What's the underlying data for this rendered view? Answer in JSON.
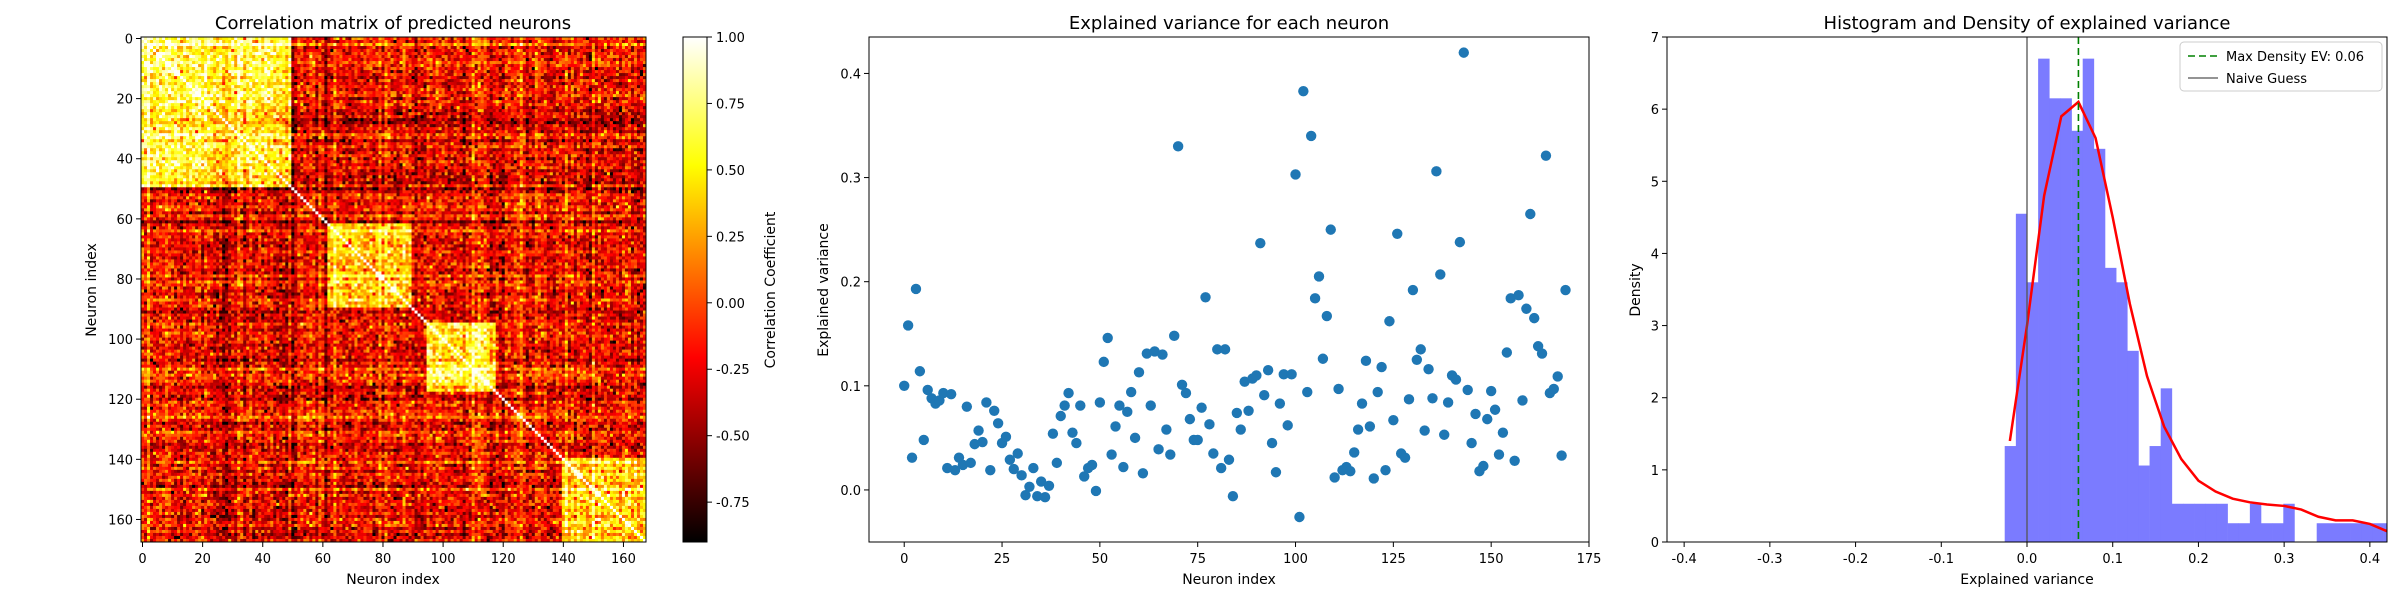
{
  "chart_data": [
    {
      "type": "heatmap",
      "title": "Correlation matrix of predicted neurons",
      "xlabel": "Neuron index",
      "ylabel": "Neuron index",
      "n": 168,
      "xticks": [
        0,
        20,
        40,
        60,
        80,
        100,
        120,
        140,
        160
      ],
      "yticks": [
        0,
        20,
        40,
        60,
        80,
        100,
        120,
        140,
        160
      ],
      "colorbar": {
        "label": "Correlation Coefficient",
        "colormap": "hot",
        "range": [
          -0.9,
          1.0
        ],
        "ticks": [
          "1.00",
          "0.75",
          "0.50",
          "0.25",
          "0.00",
          "-0.25",
          "-0.50",
          "-0.75"
        ]
      },
      "blocks": [
        {
          "range": [
            0,
            50
          ],
          "mean": 0.6
        },
        {
          "range": [
            62,
            90
          ],
          "mean": 0.4
        },
        {
          "range": [
            95,
            118
          ],
          "mean": 0.55
        },
        {
          "range": [
            140,
            168
          ],
          "mean": 0.45
        }
      ],
      "background_mean": -0.2
    },
    {
      "type": "scatter",
      "title": "Explained variance for each neuron",
      "xlabel": "Neuron index",
      "ylabel": "Explained variance",
      "xlim": [
        -9,
        175
      ],
      "ylim": [
        -0.05,
        0.435
      ],
      "xticks": [
        0,
        25,
        50,
        75,
        100,
        125,
        150,
        175
      ],
      "yticks": [
        "0.0",
        "0.1",
        "0.2",
        "0.3",
        "0.4"
      ],
      "color": "#1f77b4",
      "y": [
        0.1,
        0.158,
        0.031,
        0.193,
        0.114,
        0.048,
        0.096,
        0.088,
        0.083,
        0.086,
        0.093,
        0.021,
        0.092,
        0.019,
        0.031,
        0.024,
        0.08,
        0.026,
        0.044,
        0.057,
        0.046,
        0.084,
        0.019,
        0.076,
        0.064,
        0.045,
        0.051,
        0.029,
        0.02,
        0.035,
        0.014,
        -0.005,
        0.003,
        0.021,
        -0.006,
        0.008,
        -0.007,
        0.004,
        0.054,
        0.026,
        0.071,
        0.081,
        0.093,
        0.055,
        0.045,
        0.081,
        0.013,
        0.021,
        0.024,
        -0.001,
        0.084,
        0.123,
        0.146,
        0.034,
        0.061,
        0.081,
        0.022,
        0.075,
        0.094,
        0.05,
        0.113,
        0.016,
        0.131,
        0.081,
        0.133,
        0.039,
        0.13,
        0.058,
        0.034,
        0.148,
        0.33,
        0.101,
        0.093,
        0.068,
        0.048,
        0.048,
        0.079,
        0.185,
        0.063,
        0.035,
        0.135,
        0.021,
        0.135,
        0.029,
        -0.006,
        0.074,
        0.058,
        0.104,
        0.076,
        0.107,
        0.11,
        0.237,
        0.091,
        0.115,
        0.045,
        0.017,
        0.083,
        0.111,
        0.062,
        0.111,
        0.303,
        -0.026,
        0.383,
        0.094,
        0.34,
        0.184,
        0.205,
        0.126,
        0.167,
        0.25,
        0.012,
        0.097,
        0.019,
        0.022,
        0.018,
        0.036,
        0.058,
        0.083,
        0.124,
        0.061,
        0.011,
        0.094,
        0.118,
        0.019,
        0.162,
        0.067,
        0.246,
        0.035,
        0.031,
        0.087,
        0.192,
        0.125,
        0.135,
        0.057,
        0.116,
        0.088,
        0.306,
        0.207,
        0.053,
        0.084,
        0.11,
        0.106,
        0.238,
        0.42,
        0.096,
        0.045,
        0.073,
        0.018,
        0.023,
        0.068,
        0.095,
        0.077,
        0.034,
        0.055,
        0.132,
        0.184,
        0.028,
        0.187,
        0.086,
        0.174,
        0.265,
        0.165,
        0.138,
        0.131,
        0.321,
        0.093,
        0.097,
        0.109,
        0.033,
        0.192
      ]
    },
    {
      "type": "bar",
      "title": "Histogram and Density of explained variance",
      "xlabel": "Explained variance",
      "ylabel": "Density",
      "xlim": [
        -0.42,
        0.42
      ],
      "ylim": [
        0,
        7
      ],
      "xticks": [
        "-0.4",
        "-0.3",
        "-0.2",
        "-0.1",
        "0.0",
        "0.1",
        "0.2",
        "0.3",
        "0.4"
      ],
      "yticks": [
        "0",
        "1",
        "2",
        "3",
        "4",
        "5",
        "6",
        "7"
      ],
      "bin_edges": [
        -0.026,
        -0.013,
        0.0,
        0.013,
        0.026,
        0.039,
        0.052,
        0.065,
        0.078,
        0.091,
        0.104,
        0.117,
        0.13,
        0.143,
        0.156,
        0.169,
        0.182,
        0.195,
        0.208,
        0.221,
        0.234,
        0.247,
        0.26,
        0.273,
        0.286,
        0.299,
        0.312,
        0.325,
        0.338,
        0.351,
        0.364,
        0.377,
        0.39,
        0.403,
        0.416,
        0.429
      ],
      "density": [
        1.33,
        4.55,
        3.6,
        6.7,
        6.15,
        6.15,
        5.7,
        6.7,
        5.45,
        3.8,
        3.6,
        2.65,
        1.06,
        1.33,
        2.13,
        0.53,
        0.53,
        0.53,
        0.53,
        0.53,
        0.26,
        0.26,
        0.53,
        0.26,
        0.26,
        0.53,
        0.0,
        0.0,
        0.26,
        0.26,
        0.26,
        0.26,
        0.26,
        0.26,
        0.26
      ],
      "bar_color": "#7b7bff",
      "kde": {
        "color": "#ff0000",
        "x": [
          -0.02,
          0.0,
          0.02,
          0.04,
          0.06,
          0.08,
          0.1,
          0.12,
          0.14,
          0.16,
          0.18,
          0.2,
          0.22,
          0.24,
          0.26,
          0.28,
          0.3,
          0.32,
          0.34,
          0.36,
          0.38,
          0.4,
          0.42
        ],
        "y": [
          1.4,
          3.0,
          4.8,
          5.9,
          6.1,
          5.6,
          4.5,
          3.3,
          2.3,
          1.6,
          1.15,
          0.85,
          0.7,
          0.6,
          0.55,
          0.52,
          0.5,
          0.45,
          0.35,
          0.3,
          0.3,
          0.25,
          0.15
        ]
      },
      "max_density_ev": 0.06,
      "naive_guess": 0.0,
      "legend": {
        "placement": "top-right",
        "max_density_label": "Max Density EV: 0.06",
        "naive_label": "Naive Guess"
      }
    }
  ]
}
